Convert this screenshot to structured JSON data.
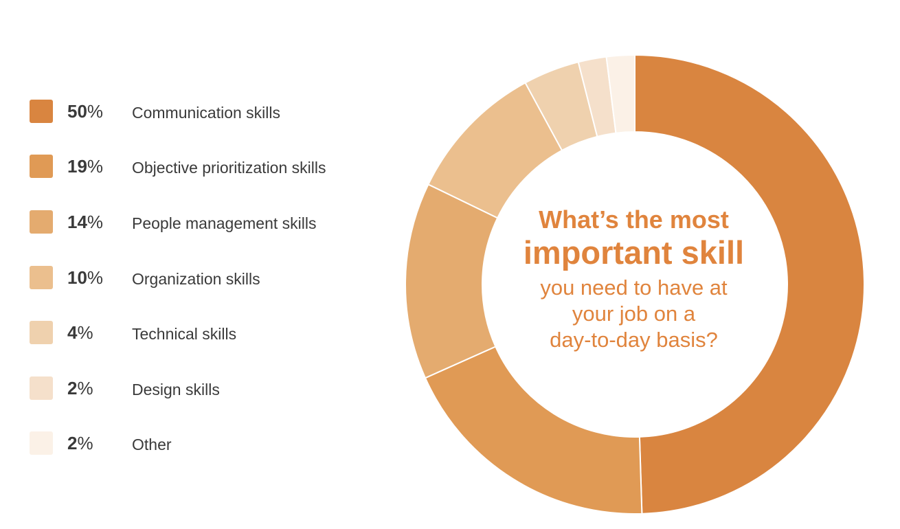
{
  "chart_data": {
    "type": "pie",
    "style": "donut",
    "legend_placement": "left",
    "title_lines": [
      "What’s the most",
      "important skill",
      "you need to have at",
      "your job on a",
      "day-to-day basis?"
    ],
    "slices": [
      {
        "label": "Communication skills",
        "value": 50,
        "percent_text": "50",
        "color": "#d98540"
      },
      {
        "label": "Objective prioritization skills",
        "value": 19,
        "percent_text": "19",
        "color": "#e09a55"
      },
      {
        "label": "People management skills",
        "value": 14,
        "percent_text": "14",
        "color": "#e4ab6f"
      },
      {
        "label": "Organization skills",
        "value": 10,
        "percent_text": "10",
        "color": "#ebbf8e"
      },
      {
        "label": "Technical skills",
        "value": 4,
        "percent_text": "4",
        "color": "#efd1ae"
      },
      {
        "label": "Design skills",
        "value": 2,
        "percent_text": "2",
        "color": "#f5e0cb"
      },
      {
        "label": "Other",
        "value": 2,
        "percent_text": "2",
        "color": "#fbf1e7"
      }
    ],
    "percent_sign": "%"
  }
}
